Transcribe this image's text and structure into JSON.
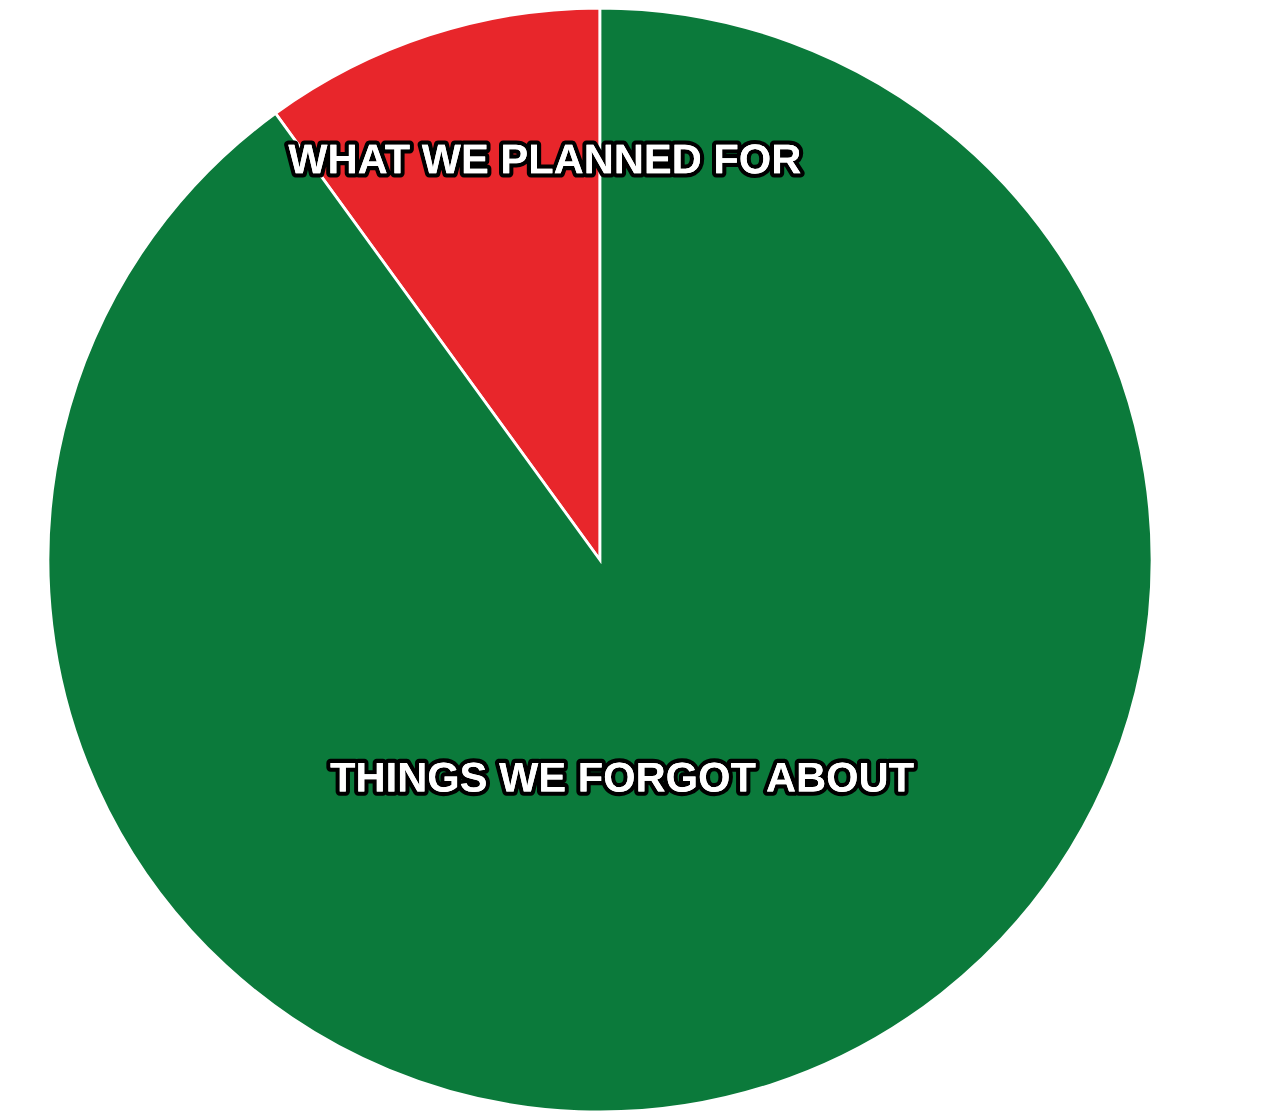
{
  "chart_data": {
    "type": "pie",
    "categories": [
      "WHAT WE PLANNED FOR",
      "THINGS WE FORGOT ABOUT"
    ],
    "values": [
      10,
      90
    ],
    "colors": [
      "#e8262b",
      "#0b7a3b"
    ]
  }
}
